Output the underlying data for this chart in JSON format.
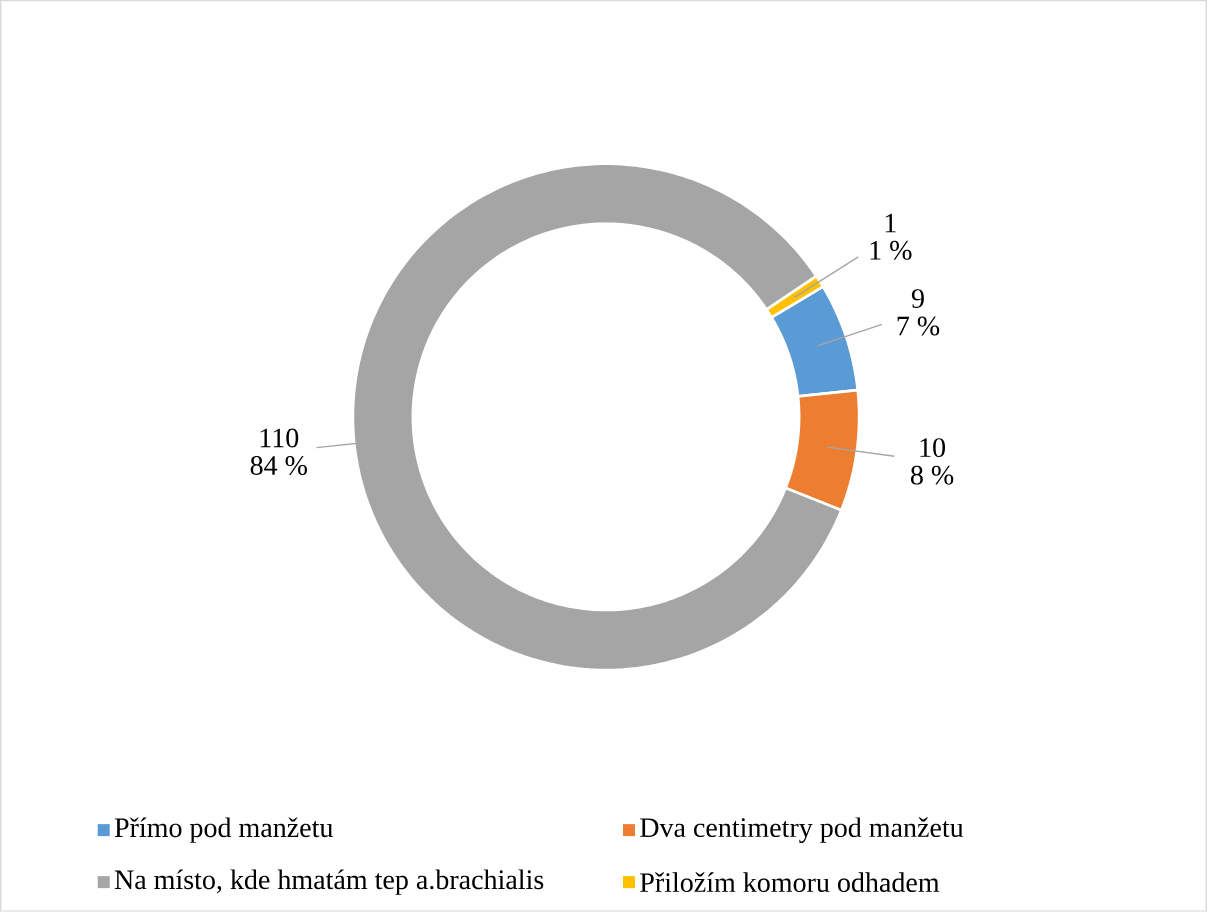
{
  "chart_data": {
    "type": "donut",
    "categories": [
      "Přímo pod manžetu",
      "Dva centimetry pod manžetu",
      "Na místo, kde hmatám tep a.brachialis",
      "Přiložím komoru odhadem"
    ],
    "values": [
      9,
      10,
      110,
      1
    ],
    "colors": [
      "#5b9bd5",
      "#ed7d31",
      "#a5a5a5",
      "#ffc000"
    ],
    "data_labels": true,
    "annotations": [
      "7 %",
      "8 %",
      "84 %",
      "1 %"
    ],
    "legend": "bottom"
  }
}
